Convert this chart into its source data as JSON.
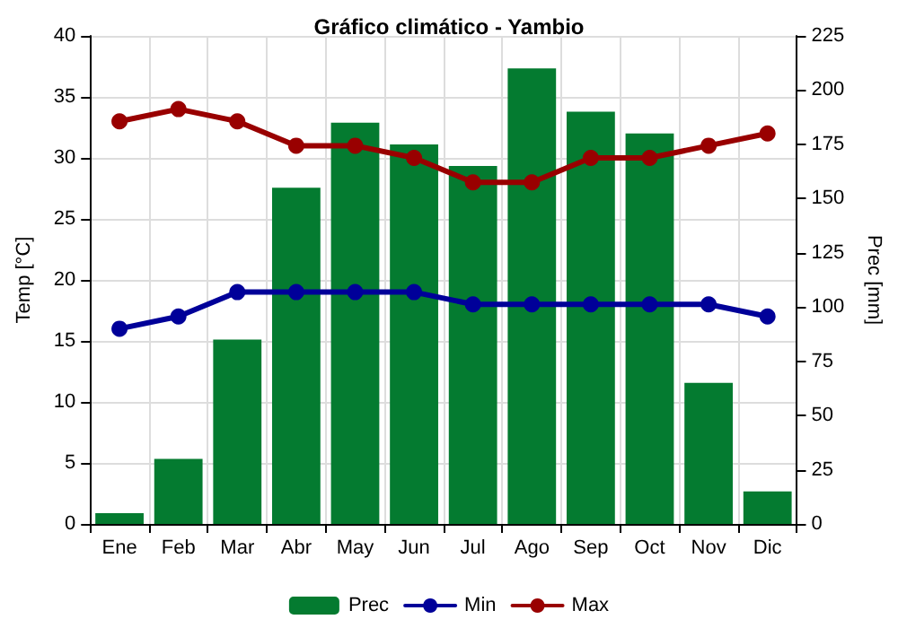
{
  "chart_data": {
    "type": "bar",
    "title": "Gráfico climático - Yambio",
    "ylabel": "Temp [°C]",
    "y2label": "Prec [mm]",
    "categories": [
      "Ene",
      "Feb",
      "Mar",
      "Abr",
      "May",
      "Jun",
      "Jul",
      "Ago",
      "Sep",
      "Oct",
      "Nov",
      "Dic"
    ],
    "series": [
      {
        "name": "Prec",
        "axis": "y2",
        "color": "#047b30",
        "values": [
          5,
          30,
          85,
          155,
          185,
          175,
          165,
          210,
          190,
          180,
          65,
          15
        ]
      },
      {
        "name": "Min",
        "type": "line",
        "color": "#000099",
        "values": [
          16,
          17,
          19,
          19,
          19,
          19,
          18,
          18,
          18,
          18,
          18,
          17
        ]
      },
      {
        "name": "Max",
        "type": "line",
        "color": "#990000",
        "values": [
          33,
          34,
          33,
          31,
          31,
          30,
          28,
          28,
          30,
          30,
          31,
          32
        ]
      }
    ],
    "ylim": [
      0,
      40
    ],
    "yticks": [
      0,
      5,
      10,
      15,
      20,
      25,
      30,
      35,
      40
    ],
    "y2lim": [
      0,
      225
    ],
    "y2ticks": [
      0,
      25,
      50,
      75,
      100,
      125,
      150,
      175,
      200,
      225
    ],
    "grid": true,
    "legend": "bottom",
    "marker": "circle",
    "line_style": "solid"
  }
}
